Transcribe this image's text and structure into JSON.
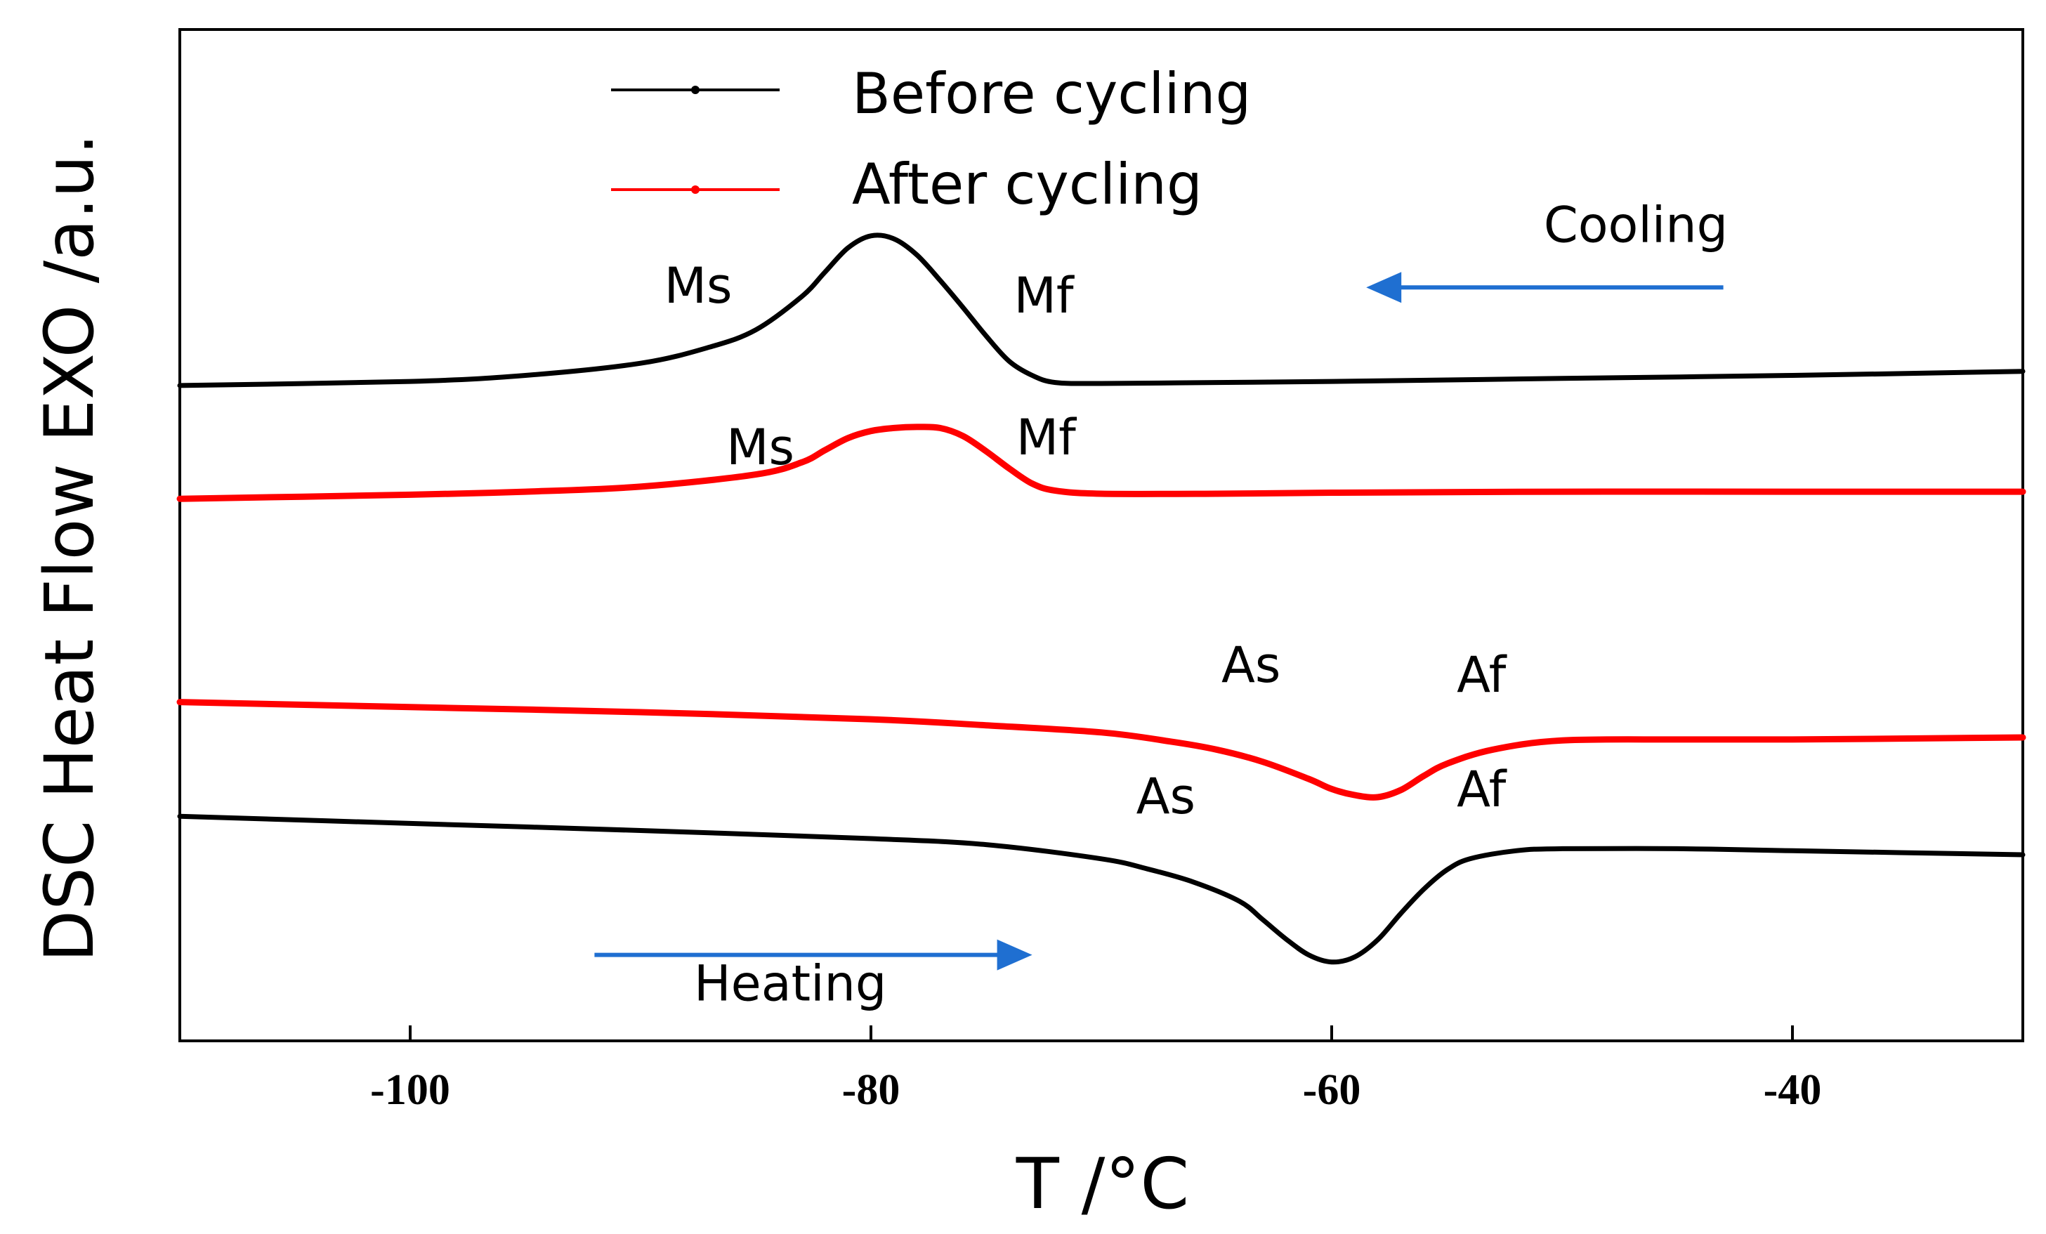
{
  "chart_data": {
    "type": "line",
    "title": "",
    "xlabel": "T  /°C",
    "ylabel": "DSC Heat Flow EXO /a.u.",
    "xlim": [
      -110,
      -30
    ],
    "ylim": [
      0,
      1
    ],
    "xticks": [
      -100,
      -80,
      -60,
      -40
    ],
    "xtick_labels": [
      "-100",
      "-80",
      "-60",
      "-40"
    ],
    "grid": false,
    "legend": {
      "position": "top-left",
      "entries": [
        {
          "label": "Before cycling",
          "color": "#000000"
        },
        {
          "label": "After cycling",
          "color": "#ff0000"
        }
      ]
    },
    "series": [
      {
        "name": "Before cycling (cooling)",
        "color": "#000000",
        "x": [
          -110,
          -100,
          -95,
          -90,
          -87,
          -85,
          -83,
          -82,
          -81,
          -80,
          -79,
          -78,
          -77,
          -76,
          -75,
          -74,
          -73,
          -72,
          -70,
          -65,
          -60,
          -50,
          -40,
          -30
        ],
        "y": [
          0.648,
          0.652,
          0.658,
          0.67,
          0.686,
          0.703,
          0.736,
          0.76,
          0.784,
          0.796,
          0.793,
          0.777,
          0.752,
          0.725,
          0.697,
          0.672,
          0.658,
          0.651,
          0.65,
          0.651,
          0.652,
          0.655,
          0.658,
          0.662
        ]
      },
      {
        "name": "After cycling (cooling)",
        "color": "#ff0000",
        "x": [
          -110,
          -100,
          -95,
          -90,
          -85,
          -83,
          -82,
          -81,
          -80,
          -79,
          -78,
          -77,
          -76,
          -75,
          -74,
          -73,
          -72,
          -70,
          -65,
          -60,
          -50,
          -40,
          -30
        ],
        "y": [
          0.536,
          0.54,
          0.543,
          0.548,
          0.56,
          0.572,
          0.584,
          0.596,
          0.603,
          0.606,
          0.607,
          0.606,
          0.598,
          0.583,
          0.566,
          0.551,
          0.544,
          0.541,
          0.541,
          0.542,
          0.543,
          0.543,
          0.543
        ]
      },
      {
        "name": "After cycling (heating)",
        "color": "#ff0000",
        "x": [
          -110,
          -100,
          -90,
          -80,
          -75,
          -70,
          -67,
          -65,
          -63,
          -61,
          -60,
          -59,
          -58,
          -57,
          -56,
          -55,
          -53,
          -50,
          -45,
          -40,
          -30
        ],
        "y": [
          0.335,
          0.33,
          0.325,
          0.318,
          0.312,
          0.305,
          0.296,
          0.288,
          0.276,
          0.259,
          0.249,
          0.243,
          0.241,
          0.248,
          0.262,
          0.274,
          0.288,
          0.297,
          0.298,
          0.298,
          0.3
        ]
      },
      {
        "name": "Before cycling (heating)",
        "color": "#000000",
        "x": [
          -110,
          -100,
          -90,
          -80,
          -75,
          -70,
          -68,
          -66,
          -64,
          -63,
          -62,
          -61,
          -60,
          -59,
          -58,
          -57,
          -56,
          -55,
          -54,
          -52,
          -50,
          -45,
          -40,
          -30
        ],
        "y": [
          0.222,
          0.215,
          0.208,
          0.2,
          0.194,
          0.18,
          0.17,
          0.157,
          0.138,
          0.12,
          0.101,
          0.085,
          0.078,
          0.083,
          0.1,
          0.126,
          0.15,
          0.169,
          0.18,
          0.188,
          0.19,
          0.19,
          0.188,
          0.184
        ]
      }
    ],
    "annotations": [
      {
        "text": "Ms",
        "x": -87.5,
        "y": 0.73
      },
      {
        "text": "Mf",
        "x": -72.5,
        "y": 0.72
      },
      {
        "text": "Ms",
        "x": -84.8,
        "y": 0.57
      },
      {
        "text": "Mf",
        "x": -72.4,
        "y": 0.58
      },
      {
        "text": "As",
        "x": -63.5,
        "y": 0.355
      },
      {
        "text": "Af",
        "x": -53.5,
        "y": 0.345
      },
      {
        "text": "As",
        "x": -67.2,
        "y": 0.225
      },
      {
        "text": "Af",
        "x": -53.5,
        "y": 0.232
      },
      {
        "text": "Cooling",
        "x": -46.8,
        "y": 0.79
      },
      {
        "text": "Heating",
        "x": -83.5,
        "y": 0.04
      }
    ],
    "arrows": [
      {
        "label": "Cooling",
        "direction": "left",
        "from_x": -43,
        "to_x": -58.5,
        "y": 0.745,
        "color": "#1f6fd1"
      },
      {
        "label": "Heating",
        "direction": "right",
        "from_x": -92,
        "to_x": -73,
        "y": 0.085,
        "color": "#1f6fd1"
      }
    ]
  }
}
